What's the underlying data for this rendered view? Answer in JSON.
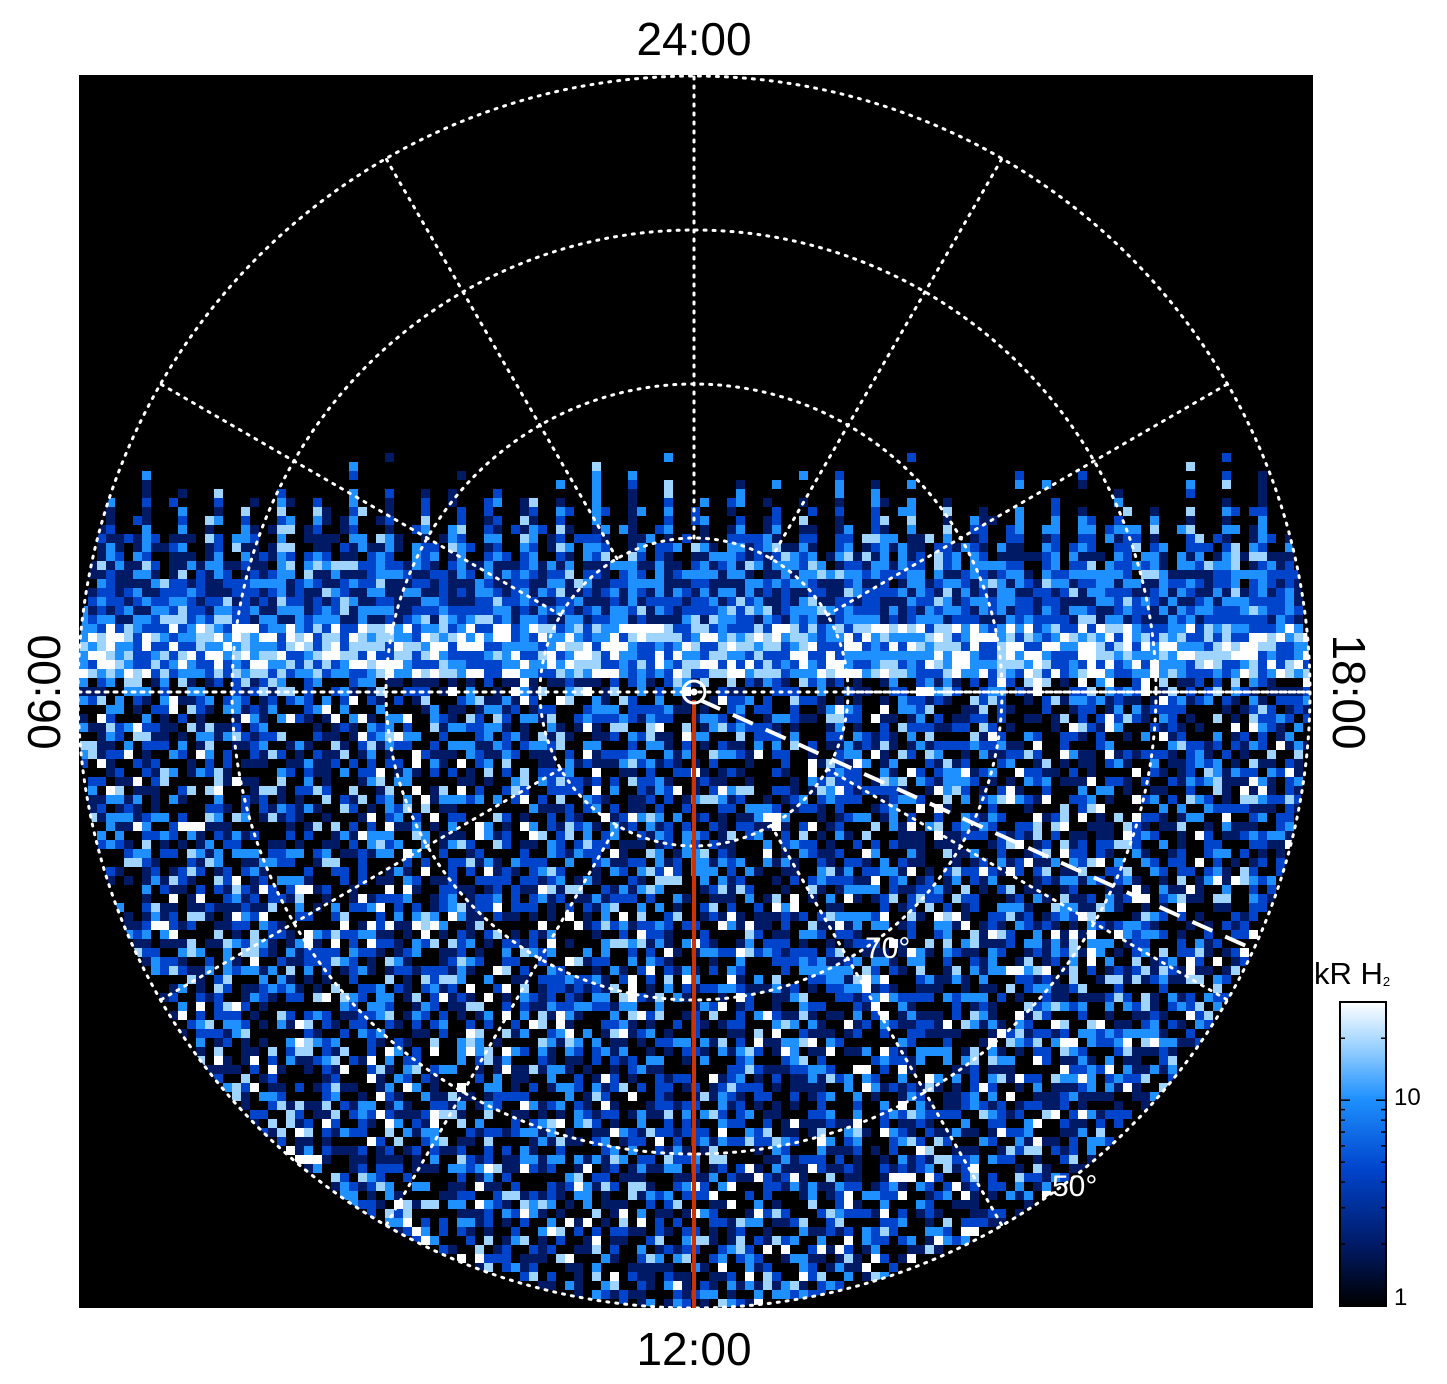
{
  "chart_data": {
    "type": "heatmap",
    "projection": "polar",
    "local_time_labels": {
      "top": "24:00",
      "bottom": "12:00",
      "left": "06:00",
      "right": "18:00"
    },
    "latitude_labels": [
      "70°",
      "50°"
    ],
    "latitude_circles_deg": [
      80,
      70,
      60,
      50
    ],
    "meridian_spacing_hours": 2,
    "colorbar": {
      "title": "kR H",
      "title_subscript": "2",
      "scale": "log",
      "range": [
        1,
        30
      ],
      "ticks": [
        "10",
        "1"
      ],
      "colors": [
        "#000000",
        "#001a66",
        "#0044cc",
        "#1e90ff",
        "#9fd4ff",
        "#ffffff"
      ]
    },
    "auroral_oval": "bright band of emission spanning 06:00–18:00 on the nightside, strongest near 18:00–20:00",
    "background_color": "#000000",
    "grid_color": "#ffffff",
    "noon_meridian_color": "#cc3300",
    "terminator_line": "dashed white line from pole toward ~16:00 local time"
  }
}
